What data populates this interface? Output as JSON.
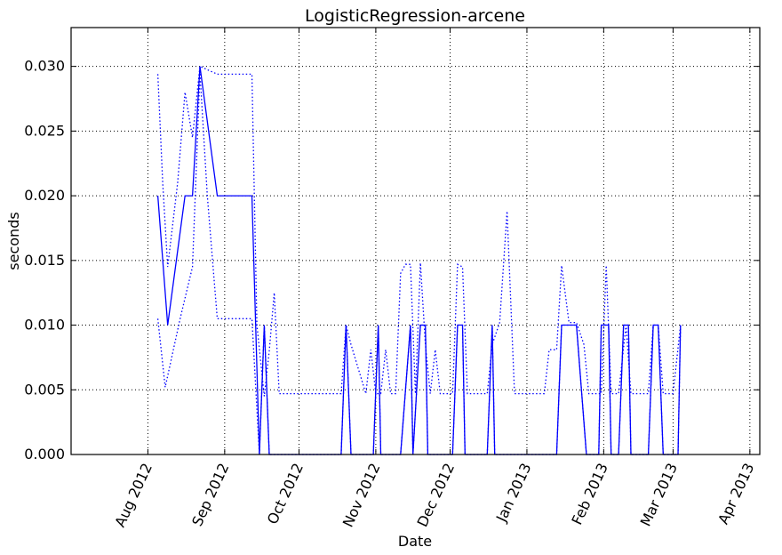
{
  "chart_data": {
    "type": "line",
    "title": "LogisticRegression-arcene",
    "xlabel": "Date",
    "ylabel": "seconds",
    "xlim": [
      "2012-07-01",
      "2013-04-05"
    ],
    "ylim": [
      0,
      0.033
    ],
    "grid": true,
    "x_ticks": [
      {
        "date": "2012-08-01",
        "label": "Aug 2012"
      },
      {
        "date": "2012-09-01",
        "label": "Sep 2012"
      },
      {
        "date": "2012-10-01",
        "label": "Oct 2012"
      },
      {
        "date": "2012-11-01",
        "label": "Nov 2012"
      },
      {
        "date": "2012-12-01",
        "label": "Dec 2012"
      },
      {
        "date": "2013-01-01",
        "label": "Jan 2013"
      },
      {
        "date": "2013-02-01",
        "label": "Feb 2013"
      },
      {
        "date": "2013-03-01",
        "label": "Mar 2013"
      },
      {
        "date": "2013-04-01",
        "label": "Apr 2013"
      }
    ],
    "y_ticks": [
      {
        "value": 0.0,
        "label": "0.000"
      },
      {
        "value": 0.005,
        "label": "0.005"
      },
      {
        "value": 0.01,
        "label": "0.010"
      },
      {
        "value": 0.015,
        "label": "0.015"
      },
      {
        "value": 0.02,
        "label": "0.020"
      },
      {
        "value": 0.025,
        "label": "0.025"
      },
      {
        "value": 0.03,
        "label": "0.030"
      }
    ],
    "series": [
      {
        "style": "solid",
        "color": "#0000ff",
        "points": [
          [
            "2012-08-05",
            0.02
          ],
          [
            "2012-08-09",
            0.01
          ],
          [
            "2012-08-16",
            0.02
          ],
          [
            "2012-08-19",
            0.02
          ],
          [
            "2012-08-22",
            0.03
          ],
          [
            "2012-08-29",
            0.02
          ],
          [
            "2012-09-04",
            0.02
          ],
          [
            "2012-09-12",
            0.02
          ],
          [
            "2012-09-15",
            0.0
          ],
          [
            "2012-09-17",
            0.01
          ],
          [
            "2012-09-19",
            0.0
          ],
          [
            "2012-10-18",
            0.0
          ],
          [
            "2012-10-20",
            0.01
          ],
          [
            "2012-10-22",
            0.0
          ],
          [
            "2012-10-31",
            0.0
          ],
          [
            "2012-11-02",
            0.01
          ],
          [
            "2012-11-03",
            0.0
          ],
          [
            "2012-11-11",
            0.0
          ],
          [
            "2012-11-15",
            0.01
          ],
          [
            "2012-11-16",
            0.0
          ],
          [
            "2012-11-19",
            0.01
          ],
          [
            "2012-11-21",
            0.01
          ],
          [
            "2012-11-22",
            0.0
          ],
          [
            "2012-12-02",
            0.0
          ],
          [
            "2012-12-04",
            0.01
          ],
          [
            "2012-12-06",
            0.01
          ],
          [
            "2012-12-07",
            0.0
          ],
          [
            "2012-12-16",
            0.0
          ],
          [
            "2012-12-18",
            0.01
          ],
          [
            "2012-12-19",
            0.0
          ],
          [
            "2013-01-13",
            0.0
          ],
          [
            "2013-01-15",
            0.01
          ],
          [
            "2013-01-21",
            0.01
          ],
          [
            "2013-01-25",
            0.0
          ],
          [
            "2013-01-30",
            0.0
          ],
          [
            "2013-01-31",
            0.01
          ],
          [
            "2013-02-03",
            0.01
          ],
          [
            "2013-02-04",
            0.0
          ],
          [
            "2013-02-07",
            0.0
          ],
          [
            "2013-02-09",
            0.01
          ],
          [
            "2013-02-11",
            0.01
          ],
          [
            "2013-02-12",
            0.0
          ],
          [
            "2013-02-19",
            0.0
          ],
          [
            "2013-02-21",
            0.01
          ],
          [
            "2013-02-23",
            0.01
          ],
          [
            "2013-02-25",
            0.0
          ],
          [
            "2013-03-03",
            0.0
          ],
          [
            "2013-03-04",
            0.01
          ]
        ]
      },
      {
        "style": "dotted",
        "color": "#0000ff",
        "points": [
          [
            "2012-08-05",
            0.0294
          ],
          [
            "2012-08-07",
            0.021
          ],
          [
            "2012-08-09",
            0.0145
          ],
          [
            "2012-08-13",
            0.021
          ],
          [
            "2012-08-16",
            0.028
          ],
          [
            "2012-08-19",
            0.0245
          ],
          [
            "2012-08-22",
            0.03
          ],
          [
            "2012-08-29",
            0.0294
          ],
          [
            "2012-09-12",
            0.0294
          ],
          [
            "2012-09-14",
            0.01
          ],
          [
            "2012-09-17",
            0.0045
          ],
          [
            "2012-09-19",
            0.008
          ],
          [
            "2012-09-21",
            0.0125
          ],
          [
            "2012-09-23",
            0.0047
          ],
          [
            "2012-10-18",
            0.0047
          ],
          [
            "2012-10-20",
            0.01
          ],
          [
            "2012-10-22",
            0.0085
          ],
          [
            "2012-10-28",
            0.0047
          ],
          [
            "2012-10-30",
            0.0081
          ],
          [
            "2012-11-01",
            0.0047
          ],
          [
            "2012-11-03",
            0.0047
          ],
          [
            "2012-11-05",
            0.0081
          ],
          [
            "2012-11-07",
            0.0047
          ],
          [
            "2012-11-09",
            0.0047
          ],
          [
            "2012-11-11",
            0.014
          ],
          [
            "2012-11-13",
            0.0147
          ],
          [
            "2012-11-15",
            0.0147
          ],
          [
            "2012-11-17",
            0.0047
          ],
          [
            "2012-11-19",
            0.0148
          ],
          [
            "2012-11-21",
            0.0085
          ],
          [
            "2012-11-23",
            0.0047
          ],
          [
            "2012-11-25",
            0.0081
          ],
          [
            "2012-11-27",
            0.0047
          ],
          [
            "2012-12-02",
            0.0047
          ],
          [
            "2012-12-04",
            0.0147
          ],
          [
            "2012-12-06",
            0.0145
          ],
          [
            "2012-12-08",
            0.0047
          ],
          [
            "2012-12-16",
            0.0047
          ],
          [
            "2012-12-18",
            0.0085
          ],
          [
            "2012-12-21",
            0.0102
          ],
          [
            "2012-12-24",
            0.0188
          ],
          [
            "2012-12-27",
            0.0047
          ],
          [
            "2013-01-08",
            0.0047
          ],
          [
            "2013-01-10",
            0.0081
          ],
          [
            "2013-01-13",
            0.0081
          ],
          [
            "2013-01-15",
            0.0146
          ],
          [
            "2013-01-18",
            0.0102
          ],
          [
            "2013-01-21",
            0.0102
          ],
          [
            "2013-01-24",
            0.0085
          ],
          [
            "2013-01-26",
            0.0047
          ],
          [
            "2013-01-31",
            0.0047
          ],
          [
            "2013-02-02",
            0.0146
          ],
          [
            "2013-02-04",
            0.0047
          ],
          [
            "2013-02-07",
            0.0047
          ],
          [
            "2013-02-10",
            0.01
          ],
          [
            "2013-02-12",
            0.0047
          ],
          [
            "2013-02-19",
            0.0047
          ],
          [
            "2013-02-21",
            0.01
          ],
          [
            "2013-02-23",
            0.01
          ],
          [
            "2013-02-25",
            0.0047
          ],
          [
            "2013-03-01",
            0.0047
          ],
          [
            "2013-03-04",
            0.01
          ]
        ]
      },
      {
        "style": "dotted",
        "color": "#0000ff",
        "points": [
          [
            "2012-08-05",
            0.0105
          ],
          [
            "2012-08-08",
            0.0052
          ],
          [
            "2012-08-14",
            0.0105
          ],
          [
            "2012-08-19",
            0.0145
          ],
          [
            "2012-08-22",
            0.0295
          ],
          [
            "2012-08-25",
            0.02
          ],
          [
            "2012-08-29",
            0.0105
          ],
          [
            "2012-09-12",
            0.0105
          ],
          [
            "2012-09-15",
            0.0
          ],
          [
            "2012-09-17",
            0.01
          ],
          [
            "2012-09-19",
            0.0
          ],
          [
            "2012-10-18",
            0.0
          ],
          [
            "2012-10-20",
            0.01
          ],
          [
            "2012-10-22",
            0.0
          ],
          [
            "2012-10-31",
            0.0
          ],
          [
            "2012-11-02",
            0.01
          ],
          [
            "2012-11-03",
            0.0
          ],
          [
            "2012-11-11",
            0.0
          ],
          [
            "2012-11-15",
            0.01
          ],
          [
            "2012-11-16",
            0.0
          ],
          [
            "2012-11-19",
            0.01
          ],
          [
            "2012-11-21",
            0.01
          ],
          [
            "2012-11-22",
            0.0
          ],
          [
            "2012-12-02",
            0.0
          ],
          [
            "2012-12-04",
            0.01
          ],
          [
            "2012-12-06",
            0.01
          ],
          [
            "2012-12-07",
            0.0
          ],
          [
            "2012-12-16",
            0.0
          ],
          [
            "2012-12-18",
            0.01
          ],
          [
            "2012-12-19",
            0.0
          ],
          [
            "2013-01-13",
            0.0
          ],
          [
            "2013-01-15",
            0.01
          ],
          [
            "2013-01-21",
            0.01
          ],
          [
            "2013-01-25",
            0.0
          ],
          [
            "2013-01-30",
            0.0
          ],
          [
            "2013-01-31",
            0.01
          ],
          [
            "2013-02-03",
            0.01
          ],
          [
            "2013-02-04",
            0.0
          ],
          [
            "2013-02-07",
            0.0
          ],
          [
            "2013-02-09",
            0.01
          ],
          [
            "2013-02-11",
            0.01
          ],
          [
            "2013-02-12",
            0.0
          ],
          [
            "2013-02-19",
            0.0
          ],
          [
            "2013-02-21",
            0.01
          ],
          [
            "2013-02-23",
            0.01
          ],
          [
            "2013-02-25",
            0.0
          ],
          [
            "2013-03-03",
            0.0
          ],
          [
            "2013-03-04",
            0.01
          ]
        ]
      }
    ]
  }
}
